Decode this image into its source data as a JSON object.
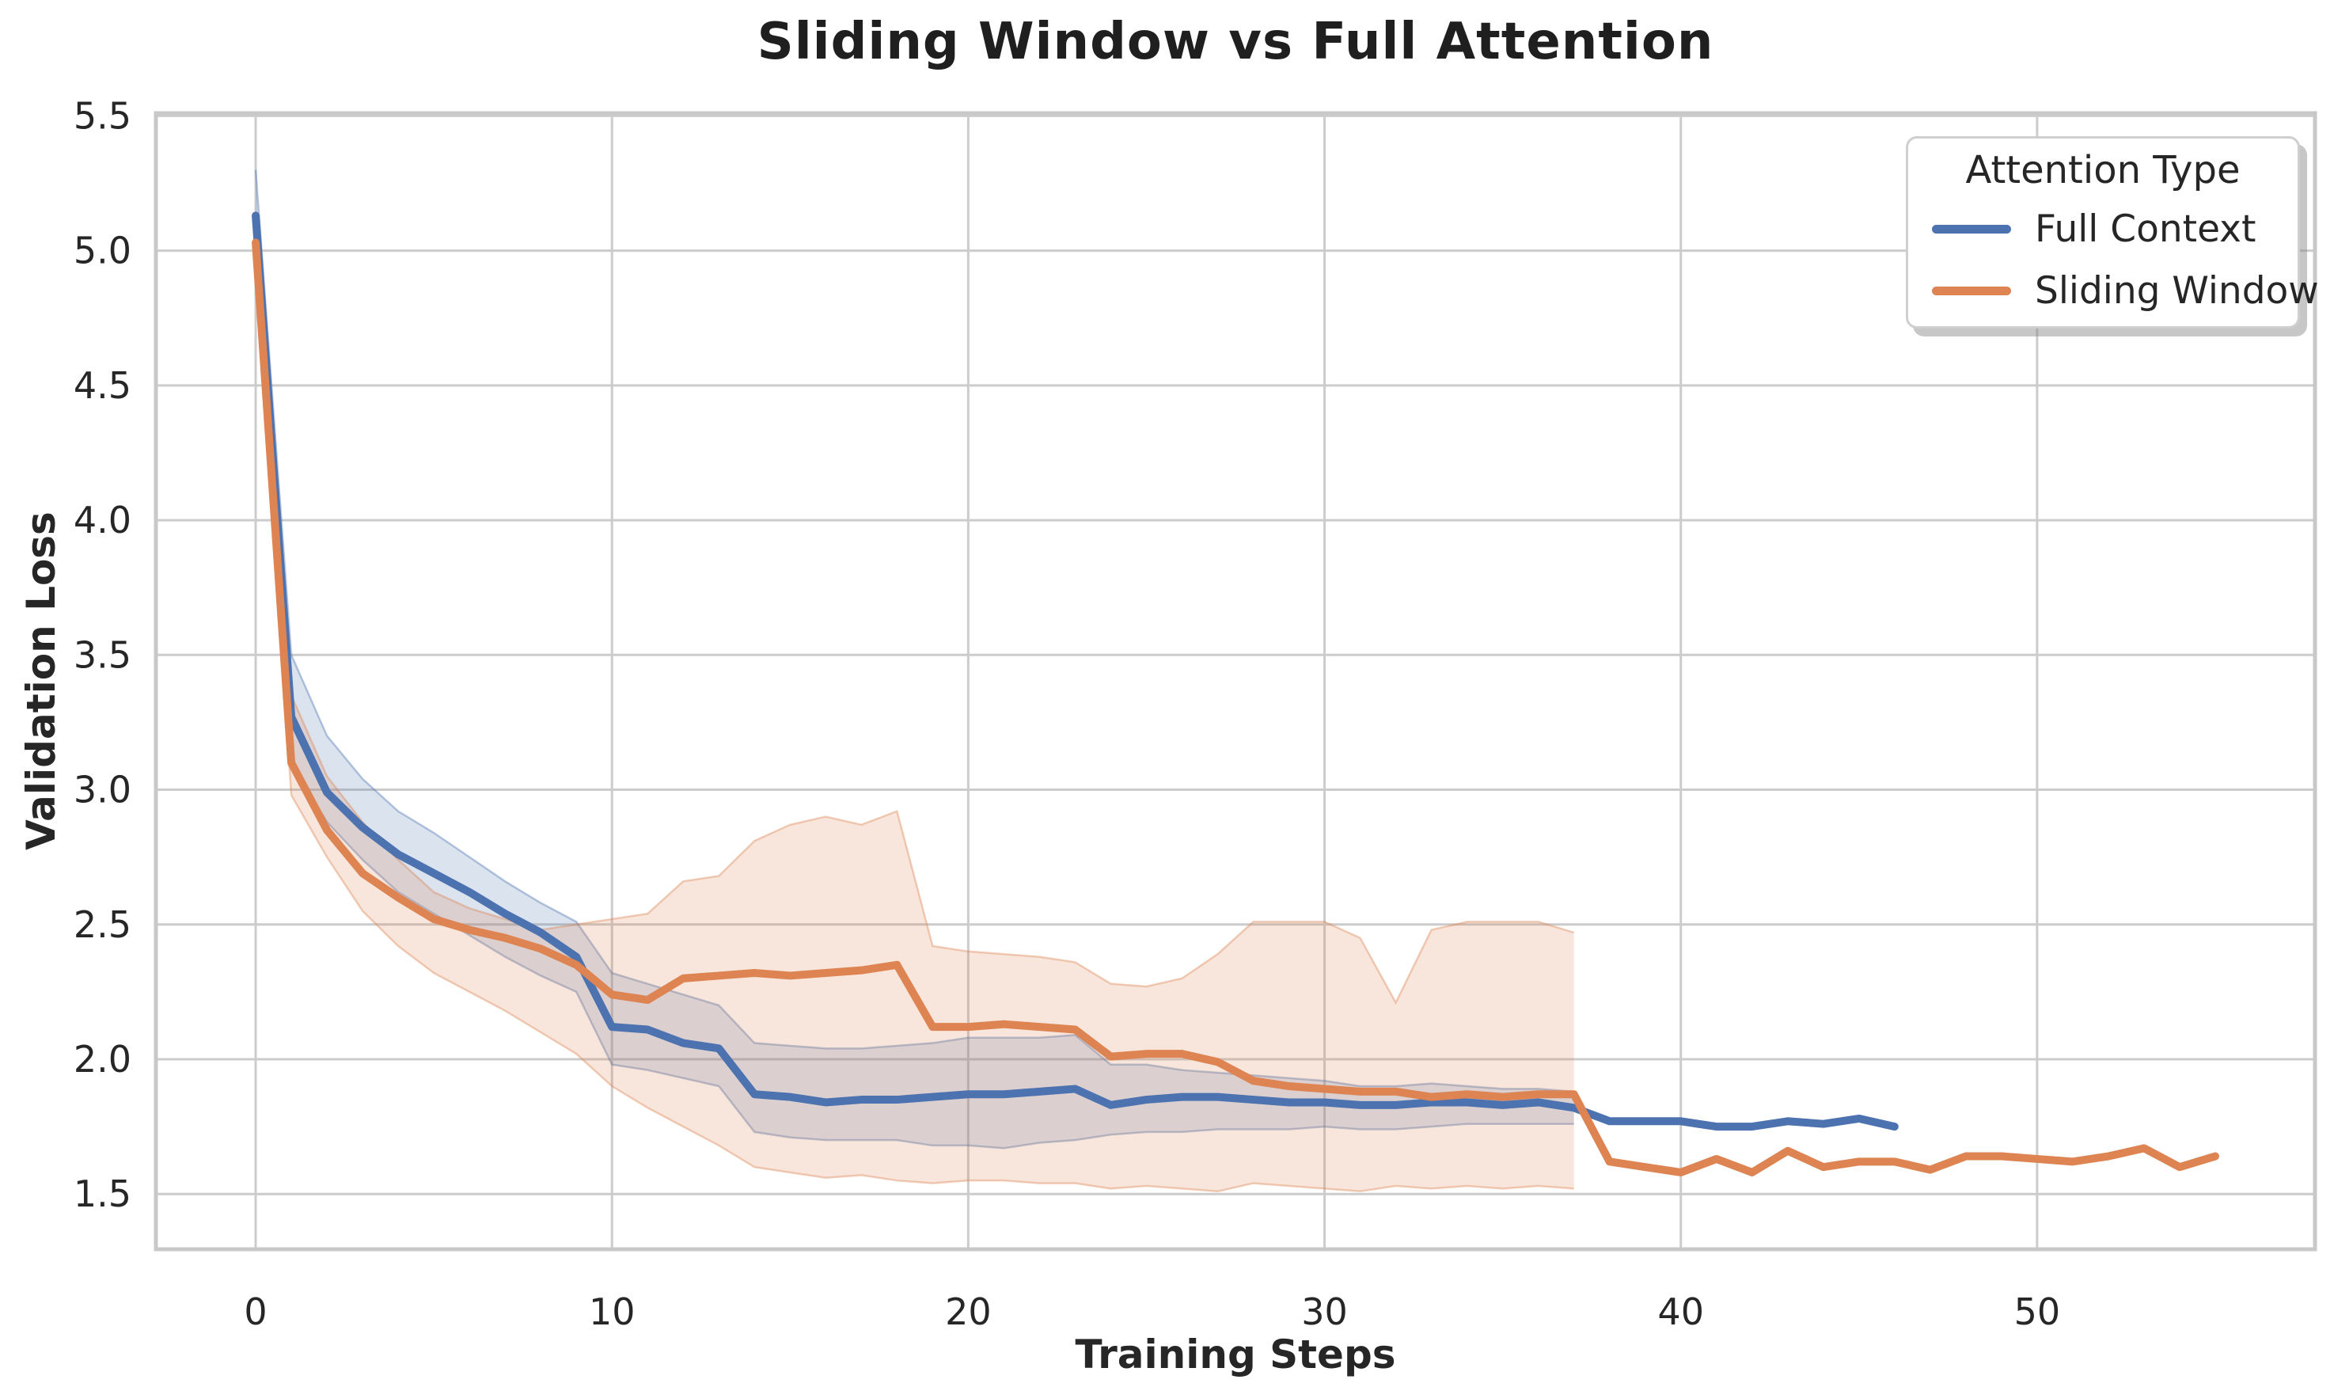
{
  "chart_data": {
    "type": "line",
    "title": "Sliding Window vs Full Attention",
    "xlabel": "Training Steps",
    "ylabel": "Validation Loss",
    "xlim": [
      -2.8,
      57.8
    ],
    "ylim": [
      1.295,
      5.51
    ],
    "xticks": [
      0,
      10,
      20,
      30,
      40,
      50
    ],
    "yticks": [
      1.5,
      2.0,
      2.5,
      3.0,
      3.5,
      4.0,
      4.5,
      5.0,
      5.5
    ],
    "grid": true,
    "grid_color": "#cccccc",
    "spine_color": "#c8c8c8",
    "text_color": "#262626",
    "background_color": "#ffffff",
    "band_opacity": 0.2,
    "legend": {
      "title": "Attention Type",
      "position": "upper right"
    },
    "series": [
      {
        "name": "Full Context",
        "color": "#4C72B0",
        "x": [
          0,
          1,
          2,
          3,
          4,
          5,
          6,
          7,
          8,
          9,
          10,
          11,
          12,
          13,
          14,
          15,
          16,
          17,
          18,
          19,
          20,
          21,
          22,
          23,
          24,
          25,
          26,
          27,
          28,
          29,
          30,
          31,
          32,
          33,
          34,
          35,
          36,
          37,
          38,
          39,
          40,
          41,
          42,
          43,
          44,
          45,
          46
        ],
        "y": [
          5.13,
          3.27,
          2.99,
          2.86,
          2.76,
          2.69,
          2.62,
          2.54,
          2.47,
          2.38,
          2.12,
          2.11,
          2.06,
          2.04,
          1.87,
          1.86,
          1.84,
          1.85,
          1.85,
          1.86,
          1.87,
          1.87,
          1.88,
          1.89,
          1.83,
          1.85,
          1.86,
          1.86,
          1.85,
          1.84,
          1.84,
          1.83,
          1.83,
          1.84,
          1.84,
          1.83,
          1.84,
          1.82,
          1.77,
          1.77,
          1.77,
          1.75,
          1.75,
          1.77,
          1.76,
          1.78,
          1.75
        ],
        "band_x": [
          0,
          1,
          2,
          3,
          4,
          5,
          6,
          7,
          8,
          9,
          10,
          11,
          12,
          13,
          14,
          15,
          16,
          17,
          18,
          19,
          20,
          21,
          22,
          23,
          24,
          25,
          26,
          27,
          28,
          29,
          30,
          31,
          32,
          33,
          34,
          35,
          36,
          37
        ],
        "band_hi": [
          5.3,
          3.5,
          3.2,
          3.04,
          2.92,
          2.84,
          2.75,
          2.66,
          2.58,
          2.51,
          2.32,
          2.28,
          2.24,
          2.2,
          2.06,
          2.05,
          2.04,
          2.04,
          2.05,
          2.06,
          2.08,
          2.08,
          2.08,
          2.09,
          1.98,
          1.98,
          1.96,
          1.95,
          1.94,
          1.93,
          1.92,
          1.9,
          1.9,
          1.91,
          1.9,
          1.89,
          1.89,
          1.88
        ],
        "band_lo": [
          4.97,
          3.1,
          2.88,
          2.74,
          2.62,
          2.54,
          2.46,
          2.38,
          2.31,
          2.25,
          1.98,
          1.96,
          1.93,
          1.9,
          1.73,
          1.71,
          1.7,
          1.7,
          1.7,
          1.68,
          1.68,
          1.67,
          1.69,
          1.7,
          1.72,
          1.73,
          1.73,
          1.74,
          1.74,
          1.74,
          1.75,
          1.74,
          1.74,
          1.75,
          1.76,
          1.76,
          1.76,
          1.76
        ]
      },
      {
        "name": "Sliding Window",
        "color": "#DD8452",
        "x": [
          0,
          1,
          2,
          3,
          4,
          5,
          6,
          7,
          8,
          9,
          10,
          11,
          12,
          13,
          14,
          15,
          16,
          17,
          18,
          19,
          20,
          21,
          22,
          23,
          24,
          25,
          26,
          27,
          28,
          29,
          30,
          31,
          32,
          33,
          34,
          35,
          36,
          37,
          38,
          39,
          40,
          41,
          42,
          43,
          44,
          45,
          46,
          47,
          48,
          49,
          50,
          51,
          52,
          53,
          54,
          55
        ],
        "y": [
          5.03,
          3.1,
          2.85,
          2.69,
          2.6,
          2.52,
          2.48,
          2.45,
          2.41,
          2.35,
          2.24,
          2.22,
          2.3,
          2.31,
          2.32,
          2.31,
          2.32,
          2.33,
          2.35,
          2.12,
          2.12,
          2.13,
          2.12,
          2.11,
          2.01,
          2.02,
          2.02,
          1.99,
          1.92,
          1.9,
          1.89,
          1.88,
          1.88,
          1.86,
          1.87,
          1.86,
          1.87,
          1.87,
          1.62,
          1.6,
          1.58,
          1.63,
          1.58,
          1.66,
          1.6,
          1.62,
          1.62,
          1.59,
          1.64,
          1.64,
          1.63,
          1.62,
          1.64,
          1.67,
          1.6,
          1.64
        ],
        "band_x": [
          0,
          1,
          2,
          3,
          4,
          5,
          6,
          7,
          8,
          9,
          10,
          11,
          12,
          13,
          14,
          15,
          16,
          17,
          18,
          19,
          20,
          21,
          22,
          23,
          24,
          25,
          26,
          27,
          28,
          29,
          30,
          31,
          32,
          33,
          34,
          35,
          36,
          37
        ],
        "band_hi": [
          5.12,
          3.35,
          3.05,
          2.88,
          2.74,
          2.62,
          2.56,
          2.52,
          2.48,
          2.5,
          2.52,
          2.54,
          2.66,
          2.68,
          2.81,
          2.87,
          2.9,
          2.87,
          2.92,
          2.42,
          2.4,
          2.39,
          2.38,
          2.36,
          2.28,
          2.27,
          2.3,
          2.39,
          2.51,
          2.51,
          2.51,
          2.45,
          2.21,
          2.48,
          2.51,
          2.51,
          2.51,
          2.47
        ],
        "band_lo": [
          4.95,
          2.98,
          2.75,
          2.55,
          2.42,
          2.32,
          2.25,
          2.18,
          2.1,
          2.02,
          1.9,
          1.82,
          1.75,
          1.68,
          1.6,
          1.58,
          1.56,
          1.57,
          1.55,
          1.54,
          1.55,
          1.55,
          1.54,
          1.54,
          1.52,
          1.53,
          1.52,
          1.51,
          1.54,
          1.53,
          1.52,
          1.51,
          1.53,
          1.52,
          1.53,
          1.52,
          1.53,
          1.52
        ]
      }
    ]
  }
}
